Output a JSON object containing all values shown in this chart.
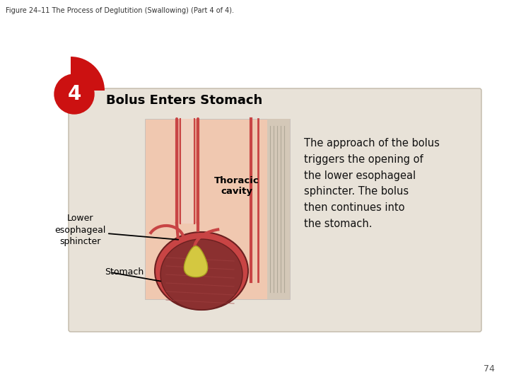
{
  "figure_title": "Figure 24–11 The Process of Deglutition (Swallowing) (Part 4 of 4).",
  "step_number": "4",
  "step_title": "Bolus Enters Stomach",
  "description_text": "The approach of the bolus\ntriggers the opening of\nthe lower esophageal\nsphincter. The bolus\nthen continues into\nthe stomach.",
  "label_thoracic": "Thoracic\ncavity",
  "label_lower_esophageal": "Lower\nesophageal\nsphincter",
  "label_stomach": "Stomach",
  "page_number": "74",
  "bg_color": "#ffffff",
  "card_bg_color": "#e8e2d8",
  "card_border_color": "#c0b8a8",
  "step_circle_color": "#cc1111",
  "step_number_color": "#ffffff",
  "step_title_color": "#000000",
  "description_color": "#111111",
  "image_bg_color": "#f0c8b0",
  "esoph_color": "#c84444",
  "esoph_fill": "#e8a090",
  "stomach_fill": "#8b3030",
  "stomach_edge": "#6b2020",
  "bolus_fill": "#d4c840",
  "bolus_edge": "#a8a020",
  "arrow_color": "#000000",
  "page_number_color": "#555555",
  "fig_title_color": "#333333",
  "right_stripe_color": "#c8b898"
}
